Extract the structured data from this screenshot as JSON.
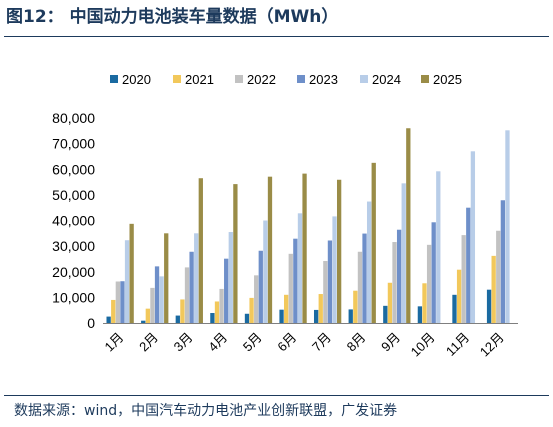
{
  "header": {
    "title": "图12：  中国动力电池装车量数据（MWh）"
  },
  "footer": {
    "source": "数据来源：wind，中国汽车动力电池产业创新联盟，广发证券"
  },
  "chart_data": {
    "type": "bar",
    "title": "",
    "xlabel": "",
    "ylabel": "",
    "ylim": [
      0,
      80000
    ],
    "yticks": [
      0,
      10000,
      20000,
      30000,
      40000,
      50000,
      60000,
      70000,
      80000
    ],
    "ytick_labels": [
      "0",
      "10,000",
      "20,000",
      "30,000",
      "40,000",
      "50,000",
      "60,000",
      "70,000",
      "80,000"
    ],
    "grid": false,
    "legend_position": "top",
    "categories": [
      "1月",
      "2月",
      "3月",
      "4月",
      "5月",
      "6月",
      "7月",
      "8月",
      "9月",
      "10月",
      "11月",
      "12月"
    ],
    "series": [
      {
        "name": "2020",
        "color": "#1a6aa1",
        "values": [
          2500,
          900,
          2900,
          3900,
          3600,
          5200,
          5100,
          5300,
          6700,
          6500,
          11000,
          13000
        ]
      },
      {
        "name": "2021",
        "color": "#f2c85b",
        "values": [
          9000,
          5600,
          9200,
          8400,
          9800,
          11000,
          11300,
          12600,
          15700,
          15500,
          20800,
          26200
        ]
      },
      {
        "name": "2022",
        "color": "#c2c2c2",
        "values": [
          16200,
          13700,
          21700,
          13300,
          18600,
          27000,
          24200,
          27800,
          31600,
          30500,
          34300,
          36000
        ]
      },
      {
        "name": "2023",
        "color": "#6e8fc9",
        "values": [
          16300,
          22100,
          27800,
          25100,
          28200,
          32900,
          32200,
          34900,
          36400,
          39300,
          45000,
          47900
        ]
      },
      {
        "name": "2024",
        "color": "#b8cde8",
        "values": [
          32300,
          18200,
          35000,
          35500,
          40000,
          42800,
          41600,
          47400,
          54500,
          59200,
          67000,
          75200
        ]
      },
      {
        "name": "2025",
        "color": "#9a8c47",
        "values": [
          38700,
          35000,
          56500,
          54200,
          57100,
          58300,
          55900,
          62500,
          76000,
          null,
          null,
          null
        ]
      }
    ]
  }
}
